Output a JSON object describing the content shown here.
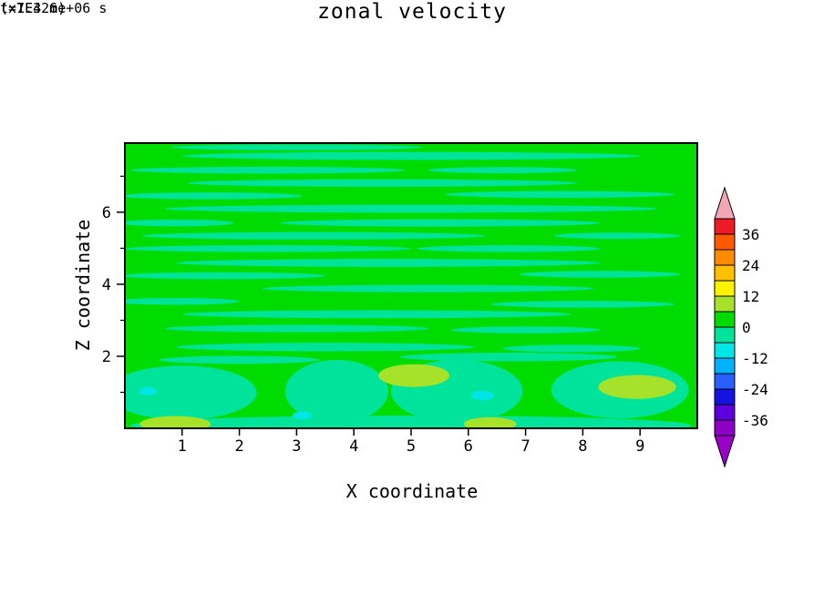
{
  "chart_data": {
    "type": "heatmap",
    "title": "zonal velocity",
    "xlabel": "X coordinate",
    "ylabel": "Z coordinate",
    "x_units": "(x1E4 m)",
    "y_units": "(x1E4 m)",
    "time_annotation": "t=7.326e+06 s",
    "xlim": [
      0,
      10
    ],
    "ylim": [
      0,
      7.92
    ],
    "x_ticks": [
      1,
      2,
      3,
      4,
      5,
      6,
      7,
      8,
      9
    ],
    "y_ticks": [
      2,
      4,
      6
    ],
    "y_minor_ticks": [
      1,
      3,
      5,
      7
    ],
    "contour_interval": 6,
    "grid": false,
    "legend_position": "right-colorbar",
    "colorbar": {
      "ticks": [
        36,
        24,
        12,
        0,
        -12,
        -24,
        -36
      ],
      "over_color": "#f2a7b6",
      "under_color": "#9b00c8",
      "bands": [
        {
          "lo": 36,
          "hi": 42,
          "color": "#ed1c24"
        },
        {
          "lo": 30,
          "hi": 36,
          "color": "#ff5a00"
        },
        {
          "lo": 24,
          "hi": 30,
          "color": "#ff8c00"
        },
        {
          "lo": 18,
          "hi": 24,
          "color": "#ffc000"
        },
        {
          "lo": 12,
          "hi": 18,
          "color": "#fff200"
        },
        {
          "lo": 6,
          "hi": 12,
          "color": "#a7e22b"
        },
        {
          "lo": 0,
          "hi": 6,
          "color": "#00dc00"
        },
        {
          "lo": -6,
          "hi": 0,
          "color": "#00e39b"
        },
        {
          "lo": -12,
          "hi": -6,
          "color": "#00e6e6"
        },
        {
          "lo": -18,
          "hi": -12,
          "color": "#00b2ff"
        },
        {
          "lo": -24,
          "hi": -18,
          "color": "#2a5fff"
        },
        {
          "lo": -30,
          "hi": -24,
          "color": "#1414e0"
        },
        {
          "lo": -36,
          "hi": -30,
          "color": "#5f00dc"
        },
        {
          "lo": -42,
          "hi": -36,
          "color": "#8c00c8"
        }
      ]
    },
    "background_band_lo": 0,
    "field_summary": "Field is mostly in the 0 to 6 band (green) with thin horizontal streaks of the -6 to 0 band (spring green); near the bottom boundary larger -6 to 0 regions appear with patches of 6 to 12 (yellow-green) and small -12 to -6 (cyan) spots.",
    "regions": [
      {
        "fx": 0.3,
        "fy": 0.015,
        "frx": 0.22,
        "fry": 0.01,
        "lo": -6
      },
      {
        "fx": 0.5,
        "fy": 0.045,
        "frx": 0.4,
        "fry": 0.014,
        "lo": -6
      },
      {
        "fx": 0.25,
        "fy": 0.095,
        "frx": 0.24,
        "fry": 0.012,
        "lo": -6
      },
      {
        "fx": 0.66,
        "fy": 0.095,
        "frx": 0.13,
        "fry": 0.011,
        "lo": -6
      },
      {
        "fx": 0.45,
        "fy": 0.14,
        "frx": 0.34,
        "fry": 0.013,
        "lo": -6
      },
      {
        "fx": 0.15,
        "fy": 0.185,
        "frx": 0.16,
        "fry": 0.012,
        "lo": -6
      },
      {
        "fx": 0.76,
        "fy": 0.18,
        "frx": 0.2,
        "fry": 0.012,
        "lo": -6
      },
      {
        "fx": 0.5,
        "fy": 0.23,
        "frx": 0.43,
        "fry": 0.014,
        "lo": -6
      },
      {
        "fx": 0.09,
        "fy": 0.28,
        "frx": 0.1,
        "fry": 0.012,
        "lo": -6
      },
      {
        "fx": 0.55,
        "fy": 0.28,
        "frx": 0.28,
        "fry": 0.013,
        "lo": -6
      },
      {
        "fx": 0.33,
        "fy": 0.325,
        "frx": 0.3,
        "fry": 0.013,
        "lo": -6
      },
      {
        "fx": 0.86,
        "fy": 0.325,
        "frx": 0.11,
        "fry": 0.011,
        "lo": -6
      },
      {
        "fx": 0.25,
        "fy": 0.37,
        "frx": 0.25,
        "fry": 0.012,
        "lo": -6
      },
      {
        "fx": 0.67,
        "fy": 0.37,
        "frx": 0.16,
        "fry": 0.012,
        "lo": -6
      },
      {
        "fx": 0.46,
        "fy": 0.42,
        "frx": 0.37,
        "fry": 0.014,
        "lo": -6
      },
      {
        "fx": 0.83,
        "fy": 0.46,
        "frx": 0.14,
        "fry": 0.012,
        "lo": -6
      },
      {
        "fx": 0.17,
        "fy": 0.465,
        "frx": 0.18,
        "fry": 0.012,
        "lo": -6
      },
      {
        "fx": 0.53,
        "fy": 0.51,
        "frx": 0.29,
        "fry": 0.013,
        "lo": -6
      },
      {
        "fx": 0.09,
        "fy": 0.555,
        "frx": 0.11,
        "fry": 0.012,
        "lo": -6
      },
      {
        "fx": 0.44,
        "fy": 0.6,
        "frx": 0.34,
        "fry": 0.014,
        "lo": -6
      },
      {
        "fx": 0.8,
        "fy": 0.565,
        "frx": 0.16,
        "fry": 0.012,
        "lo": -6
      },
      {
        "fx": 0.3,
        "fy": 0.65,
        "frx": 0.23,
        "fry": 0.013,
        "lo": -6
      },
      {
        "fx": 0.7,
        "fy": 0.655,
        "frx": 0.13,
        "fry": 0.012,
        "lo": -6
      },
      {
        "fx": 0.35,
        "fy": 0.715,
        "frx": 0.26,
        "fry": 0.015,
        "lo": -6
      },
      {
        "fx": 0.78,
        "fy": 0.72,
        "frx": 0.12,
        "fry": 0.013,
        "lo": -6
      },
      {
        "fx": 0.67,
        "fy": 0.75,
        "frx": 0.19,
        "fry": 0.015,
        "lo": -6
      },
      {
        "fx": 0.2,
        "fy": 0.76,
        "frx": 0.14,
        "fry": 0.014,
        "lo": -6
      },
      {
        "fx": 0.1,
        "fy": 0.875,
        "frx": 0.13,
        "fry": 0.095,
        "lo": -6
      },
      {
        "fx": 0.37,
        "fy": 0.87,
        "frx": 0.09,
        "fry": 0.11,
        "lo": -6
      },
      {
        "fx": 0.58,
        "fy": 0.87,
        "frx": 0.115,
        "fry": 0.11,
        "lo": -6
      },
      {
        "fx": 0.865,
        "fy": 0.865,
        "frx": 0.12,
        "fry": 0.1,
        "lo": -6
      },
      {
        "fx": 0.5,
        "fy": 0.99,
        "frx": 0.49,
        "fry": 0.035,
        "lo": -6
      },
      {
        "fx": 0.505,
        "fy": 0.815,
        "frx": 0.062,
        "fry": 0.04,
        "lo": 6
      },
      {
        "fx": 0.895,
        "fy": 0.855,
        "frx": 0.068,
        "fry": 0.042,
        "lo": 6
      },
      {
        "fx": 0.088,
        "fy": 0.985,
        "frx": 0.062,
        "fry": 0.028,
        "lo": 6
      },
      {
        "fx": 0.638,
        "fy": 0.985,
        "frx": 0.046,
        "fry": 0.024,
        "lo": 6
      },
      {
        "fx": 0.625,
        "fy": 0.885,
        "frx": 0.02,
        "fry": 0.017,
        "lo": -12
      },
      {
        "fx": 0.31,
        "fy": 0.955,
        "frx": 0.017,
        "fry": 0.014,
        "lo": -12
      },
      {
        "fx": 0.04,
        "fy": 0.87,
        "frx": 0.016,
        "fry": 0.014,
        "lo": -12
      }
    ]
  }
}
